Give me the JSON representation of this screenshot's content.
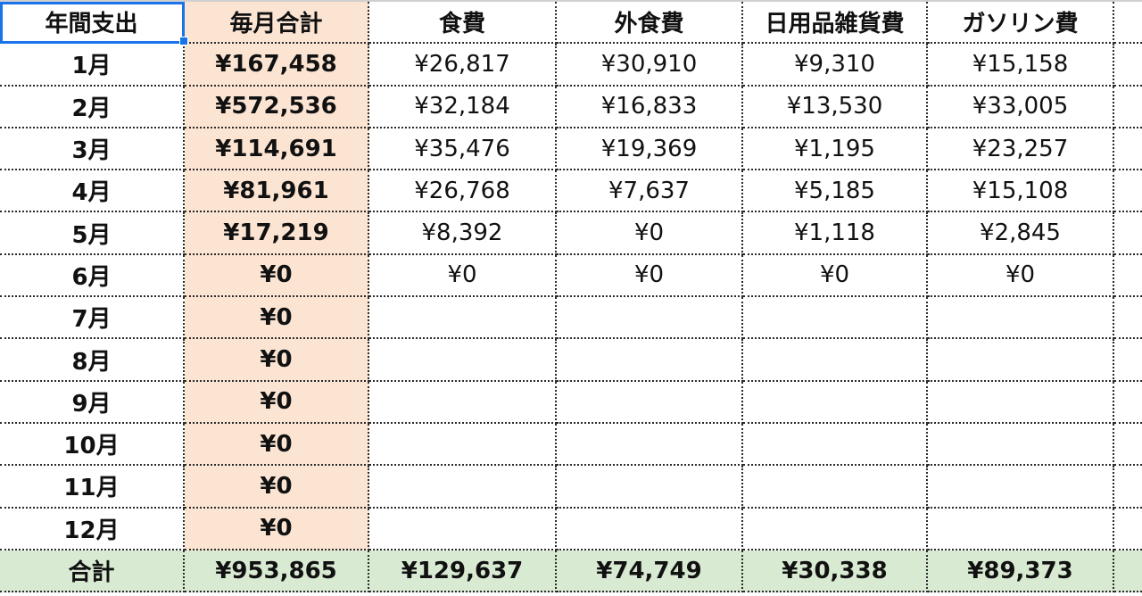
{
  "sheet": {
    "headers": [
      "年間支出",
      "毎月合計",
      "食費",
      "外食費",
      "日用品雑貨費",
      "ガソリン費"
    ],
    "rows": [
      {
        "month": "1月",
        "total": "¥167,458",
        "food": "¥26,817",
        "dining": "¥30,910",
        "daily": "¥9,310",
        "gas": "¥15,158"
      },
      {
        "month": "2月",
        "total": "¥572,536",
        "food": "¥32,184",
        "dining": "¥16,833",
        "daily": "¥13,530",
        "gas": "¥33,005"
      },
      {
        "month": "3月",
        "total": "¥114,691",
        "food": "¥35,476",
        "dining": "¥19,369",
        "daily": "¥1,195",
        "gas": "¥23,257"
      },
      {
        "month": "4月",
        "total": "¥81,961",
        "food": "¥26,768",
        "dining": "¥7,637",
        "daily": "¥5,185",
        "gas": "¥15,108"
      },
      {
        "month": "5月",
        "total": "¥17,219",
        "food": "¥8,392",
        "dining": "¥0",
        "daily": "¥1,118",
        "gas": "¥2,845"
      },
      {
        "month": "6月",
        "total": "¥0",
        "food": "¥0",
        "dining": "¥0",
        "daily": "¥0",
        "gas": "¥0"
      },
      {
        "month": "7月",
        "total": "¥0",
        "food": "",
        "dining": "",
        "daily": "",
        "gas": ""
      },
      {
        "month": "8月",
        "total": "¥0",
        "food": "",
        "dining": "",
        "daily": "",
        "gas": ""
      },
      {
        "month": "9月",
        "total": "¥0",
        "food": "",
        "dining": "",
        "daily": "",
        "gas": ""
      },
      {
        "month": "10月",
        "total": "¥0",
        "food": "",
        "dining": "",
        "daily": "",
        "gas": ""
      },
      {
        "month": "11月",
        "total": "¥0",
        "food": "",
        "dining": "",
        "daily": "",
        "gas": ""
      },
      {
        "month": "12月",
        "total": "¥0",
        "food": "",
        "dining": "",
        "daily": "",
        "gas": ""
      }
    ],
    "total_row": {
      "label": "合計",
      "total": "¥953,865",
      "food": "¥129,637",
      "dining": "¥74,749",
      "daily": "¥30,338",
      "gas": "¥89,373"
    }
  },
  "colors": {
    "monthly_total_column": "#fce4d3",
    "total_row": "#d9ead3",
    "selection": "#1a73e8"
  }
}
